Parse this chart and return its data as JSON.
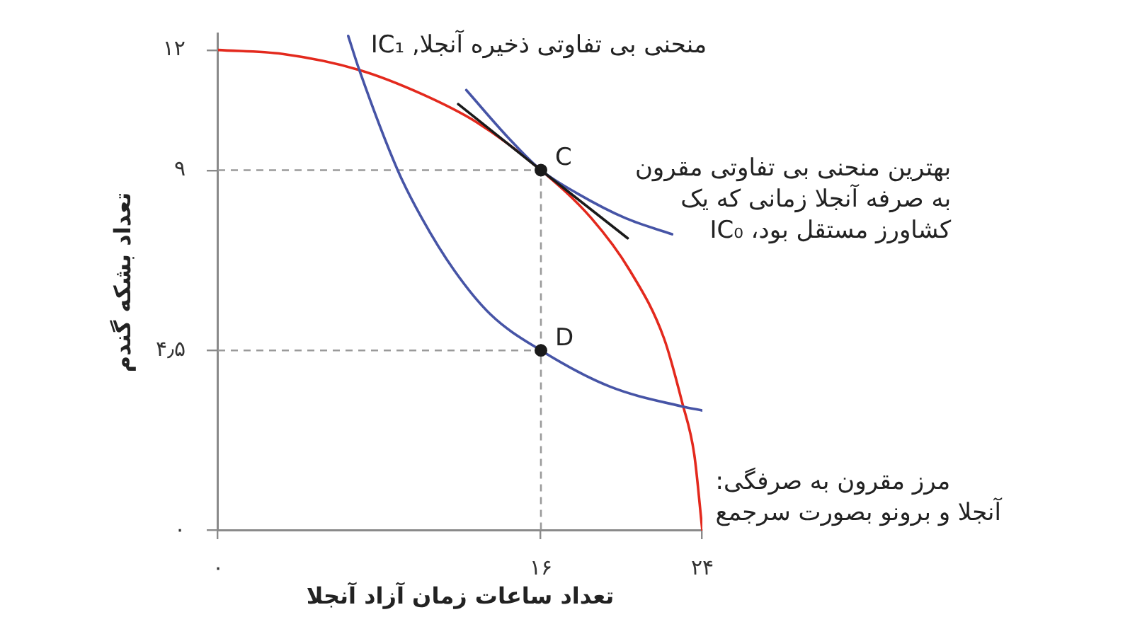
{
  "chart_data": {
    "type": "line",
    "xlabel": "تعداد ساعات زمان آزاد آنجلا",
    "ylabel": "تعداد بشکه گندم",
    "xlim": [
      0,
      24
    ],
    "ylim": [
      0,
      12.4
    ],
    "xticks": [
      {
        "value": 0,
        "label": "۰"
      },
      {
        "value": 16,
        "label": "۱۶"
      },
      {
        "value": 24,
        "label": "۲۴"
      }
    ],
    "yticks": [
      {
        "value": 0,
        "label": "۰"
      },
      {
        "value": 4.5,
        "label": "۴٫۵"
      },
      {
        "value": 9,
        "label": "۹"
      },
      {
        "value": 12,
        "label": "۱۲"
      }
    ],
    "series": [
      {
        "x": [
          0,
          16,
          16
        ],
        "values": [
          9,
          9,
          0
        ],
        "color": "#9a9a9a",
        "line_style": "dashed"
      },
      {
        "x": [
          0,
          16
        ],
        "values": [
          4.5,
          4.5
        ],
        "color": "#9a9a9a",
        "line_style": "dashed"
      },
      {
        "x": [
          0,
          3.2,
          7.0,
          10.1,
          12.8,
          16,
          18.5,
          20.4,
          22.1,
          23.0,
          23.6,
          24
        ],
        "values": [
          12,
          11.9,
          11.5,
          10.9,
          10.2,
          9,
          7.8,
          6.5,
          4.8,
          3.2,
          1.9,
          0
        ],
        "color": "#e3291d"
      },
      {
        "x": [
          6.45,
          7.0,
          8.9,
          10.1,
          11.7,
          13.5,
          16,
          19.4,
          23.0,
          24
        ],
        "values": [
          12.35,
          11.5,
          9.0,
          7.8,
          6.5,
          5.4,
          4.5,
          3.6,
          3.1,
          3.0
        ],
        "color": "#4654a6"
      },
      {
        "x": [
          12.3,
          14.4,
          16,
          17.8,
          20.2,
          22.5
        ],
        "values": [
          11.0,
          9.8,
          9,
          8.42,
          7.8,
          7.4
        ],
        "color": "#4654a6"
      },
      {
        "x": [
          11.9,
          16,
          20.3
        ],
        "values": [
          10.65,
          9,
          7.3
        ],
        "color": "#1a1a1a"
      },
      {
        "type": "scatter",
        "x": [
          16,
          16
        ],
        "values": [
          9,
          4.5
        ],
        "color": "#1a1a1a",
        "marker": "circle"
      }
    ],
    "annotations": [
      {
        "text": "منحنی بی تفاوتی ذخیره آنجلا, IC₁",
        "x": 6.45,
        "y": 12.35
      },
      {
        "text": "C",
        "x": 16,
        "y": 9
      },
      {
        "text": "بهترین منحنی بی تفاوتی مقرون\nبه صرفه آنجلا زمانی که یک\nکشاورز مستقل بود، IC₀",
        "x": 22.5,
        "y": 7.4
      },
      {
        "text": "D",
        "x": 16,
        "y": 4.5
      },
      {
        "text": "مرز مقرون به صرفگی:\nآنجلا و برونو بصورت سرجمع",
        "x": 23.6,
        "y": 1.9
      }
    ]
  }
}
